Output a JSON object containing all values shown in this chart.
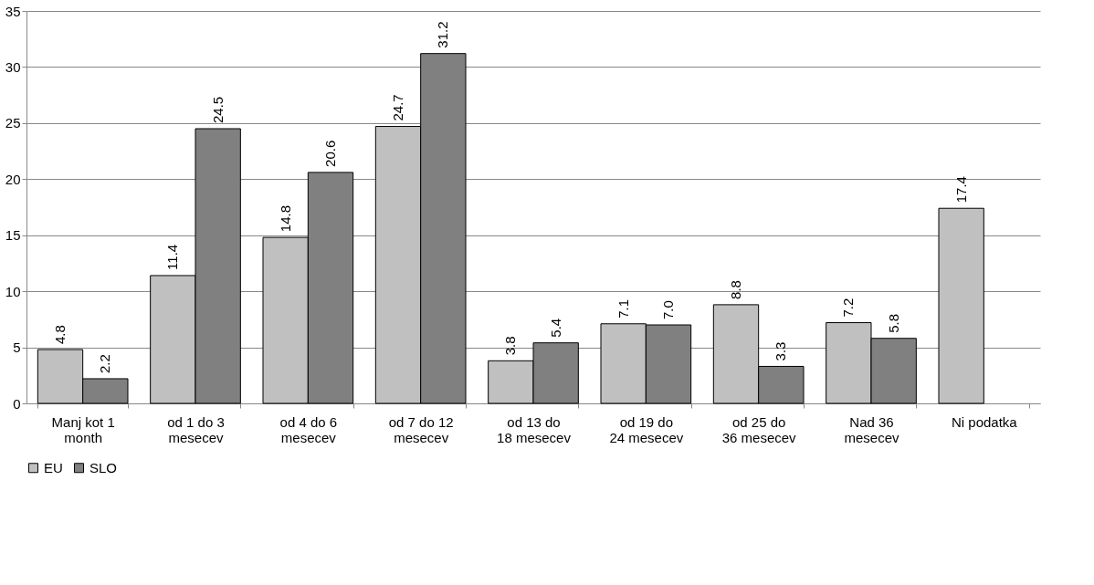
{
  "chart_data": {
    "type": "bar",
    "categories": [
      "Manj kot 1 month",
      "od 1 do 3 mesecev",
      "od 4 do 6 mesecev",
      "od 7 do 12 mesecev",
      "od 13 do 18 mesecev",
      "od 19 do 24 mesecev",
      "od 25 do 36 mesecev",
      "Nad 36 mesecev",
      "Ni podatka"
    ],
    "series": [
      {
        "name": "EU",
        "color": "#c0c0c0",
        "values": [
          4.8,
          11.4,
          14.8,
          24.7,
          3.8,
          7.1,
          8.8,
          7.2,
          17.4
        ],
        "value_labels": [
          "4.8",
          "11.4",
          "14.8",
          "24.7",
          "3.8",
          "7.1",
          "8.8",
          "7.2",
          "17.4"
        ]
      },
      {
        "name": "SLO",
        "color": "#808080",
        "values": [
          2.2,
          24.5,
          20.6,
          31.2,
          5.4,
          7.0,
          3.3,
          5.8,
          null
        ],
        "value_labels": [
          "2.2",
          "24.5",
          "20.6",
          "31.2",
          "5.4",
          "7.0",
          "3.3",
          "5.8",
          null
        ]
      }
    ],
    "ylim": [
      0,
      35
    ],
    "yticks": [
      0,
      5,
      10,
      15,
      20,
      25,
      30,
      35
    ],
    "grid": "y",
    "legend": "bottom"
  }
}
